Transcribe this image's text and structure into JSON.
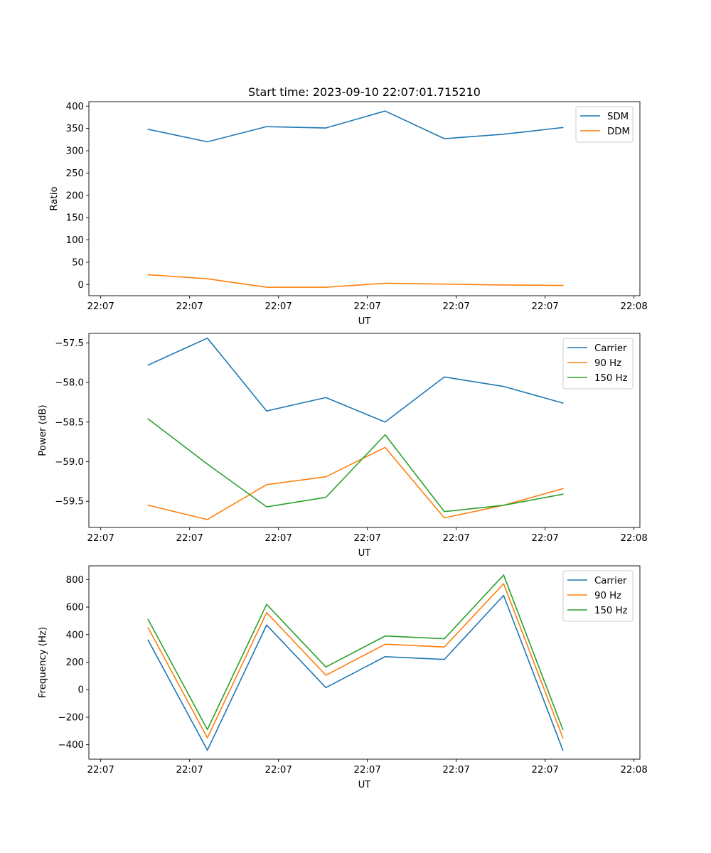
{
  "chart_data": [
    {
      "type": "line",
      "title": "Start time: 2023-09-10 22:07:01.715210",
      "xlabel": "UT",
      "ylabel": "Ratio",
      "x": [
        1,
        2,
        3,
        4,
        5,
        6,
        7,
        8
      ],
      "xlim": [
        0,
        9.3
      ],
      "xticks": [
        0.2,
        1.7,
        3.2,
        4.7,
        6.2,
        7.7,
        9.2
      ],
      "xtick_labels": [
        "22:07",
        "22:07",
        "22:07",
        "22:07",
        "22:07",
        "22:07",
        "22:07"
      ],
      "edge_xtick": 9.2,
      "edge_xtick_label": "22:08",
      "ylim": [
        -25,
        410
      ],
      "yticks": [
        0,
        50,
        100,
        150,
        200,
        250,
        300,
        350,
        400
      ],
      "ytick_labels": [
        "0",
        "50",
        "100",
        "150",
        "200",
        "250",
        "300",
        "350",
        "400"
      ],
      "legend": "upper right",
      "series": [
        {
          "name": "SDM",
          "color": "#1f77b4",
          "values": [
            348,
            320,
            354,
            351,
            389,
            327,
            337,
            352
          ]
        },
        {
          "name": "DDM",
          "color": "#ff7f0e",
          "values": [
            22,
            13,
            -6,
            -6,
            3,
            1,
            -1,
            -2
          ]
        }
      ]
    },
    {
      "type": "line",
      "title": "",
      "xlabel": "UT",
      "ylabel": "Power (dB)",
      "x": [
        1,
        2,
        3,
        4,
        5,
        6,
        7,
        8
      ],
      "xlim": [
        0,
        9.3
      ],
      "xticks": [
        0.2,
        1.7,
        3.2,
        4.7,
        6.2,
        7.7,
        9.2
      ],
      "xtick_labels": [
        "22:07",
        "22:07",
        "22:07",
        "22:07",
        "22:07",
        "22:07",
        "22:07"
      ],
      "edge_xtick": 9.2,
      "edge_xtick_label": "22:08",
      "ylim": [
        -59.83,
        -57.38
      ],
      "yticks": [
        -59.5,
        -59.0,
        -58.5,
        -58.0,
        -57.5
      ],
      "ytick_labels": [
        "−59.5",
        "−59.0",
        "−58.5",
        "−58.0",
        "−57.5"
      ],
      "legend": "upper right",
      "series": [
        {
          "name": "Carrier",
          "color": "#1f77b4",
          "values": [
            -57.78,
            -57.44,
            -58.36,
            -58.19,
            -58.5,
            -57.93,
            -58.05,
            -58.26
          ]
        },
        {
          "name": "90 Hz",
          "color": "#ff7f0e",
          "values": [
            -59.55,
            -59.73,
            -59.29,
            -59.19,
            -58.82,
            -59.71,
            -59.55,
            -59.34
          ]
        },
        {
          "name": "150 Hz",
          "color": "#2ca02c",
          "values": [
            -58.46,
            -59.03,
            -59.57,
            -59.45,
            -58.66,
            -59.63,
            -59.55,
            -59.41
          ]
        }
      ]
    },
    {
      "type": "line",
      "title": "",
      "xlabel": "UT",
      "ylabel": "Frequency (Hz)",
      "x": [
        1,
        2,
        3,
        4,
        5,
        6,
        7,
        8
      ],
      "xlim": [
        0,
        9.3
      ],
      "xticks": [
        0.2,
        1.7,
        3.2,
        4.7,
        6.2,
        7.7,
        9.2
      ],
      "xtick_labels": [
        "22:07",
        "22:07",
        "22:07",
        "22:07",
        "22:07",
        "22:07",
        "22:07"
      ],
      "edge_xtick": 9.2,
      "edge_xtick_label": "22:08",
      "ylim": [
        -505,
        900
      ],
      "yticks": [
        -400,
        -200,
        0,
        200,
        400,
        600,
        800
      ],
      "ytick_labels": [
        "−400",
        "−200",
        "0",
        "200",
        "400",
        "600",
        "800"
      ],
      "legend": "upper right",
      "series": [
        {
          "name": "Carrier",
          "color": "#1f77b4",
          "values": [
            360,
            -440,
            470,
            15,
            240,
            220,
            685,
            -440
          ]
        },
        {
          "name": "90 Hz",
          "color": "#ff7f0e",
          "values": [
            450,
            -350,
            560,
            105,
            330,
            310,
            770,
            -350
          ]
        },
        {
          "name": "150 Hz",
          "color": "#2ca02c",
          "values": [
            510,
            -290,
            620,
            165,
            390,
            370,
            833,
            -290
          ]
        }
      ]
    }
  ]
}
